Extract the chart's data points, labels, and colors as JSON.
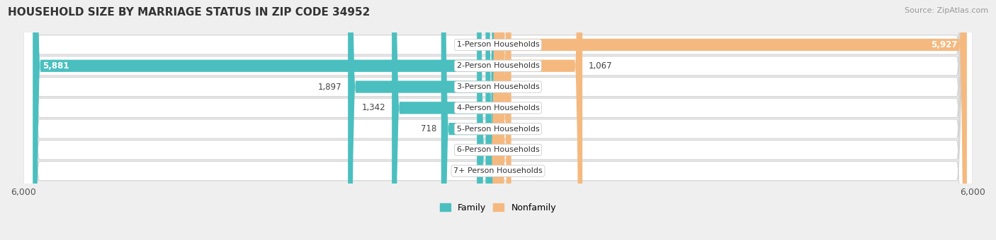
{
  "title": "HOUSEHOLD SIZE BY MARRIAGE STATUS IN ZIP CODE 34952",
  "source": "Source: ZipAtlas.com",
  "categories": [
    "1-Person Households",
    "2-Person Households",
    "3-Person Households",
    "4-Person Households",
    "5-Person Households",
    "6-Person Households",
    "7+ Person Households"
  ],
  "family_values": [
    0,
    5881,
    1897,
    1342,
    718,
    267,
    157
  ],
  "nonfamily_values": [
    5927,
    1067,
    167,
    65,
    0,
    7,
    0
  ],
  "family_color": "#4BBFBF",
  "nonfamily_color": "#F5B97F",
  "xlim": 6000,
  "bar_height": 0.58,
  "bg_color": "#efefef",
  "title_fontsize": 11,
  "source_fontsize": 8,
  "label_fontsize": 8.5,
  "tick_fontsize": 9,
  "legend_fontsize": 9
}
